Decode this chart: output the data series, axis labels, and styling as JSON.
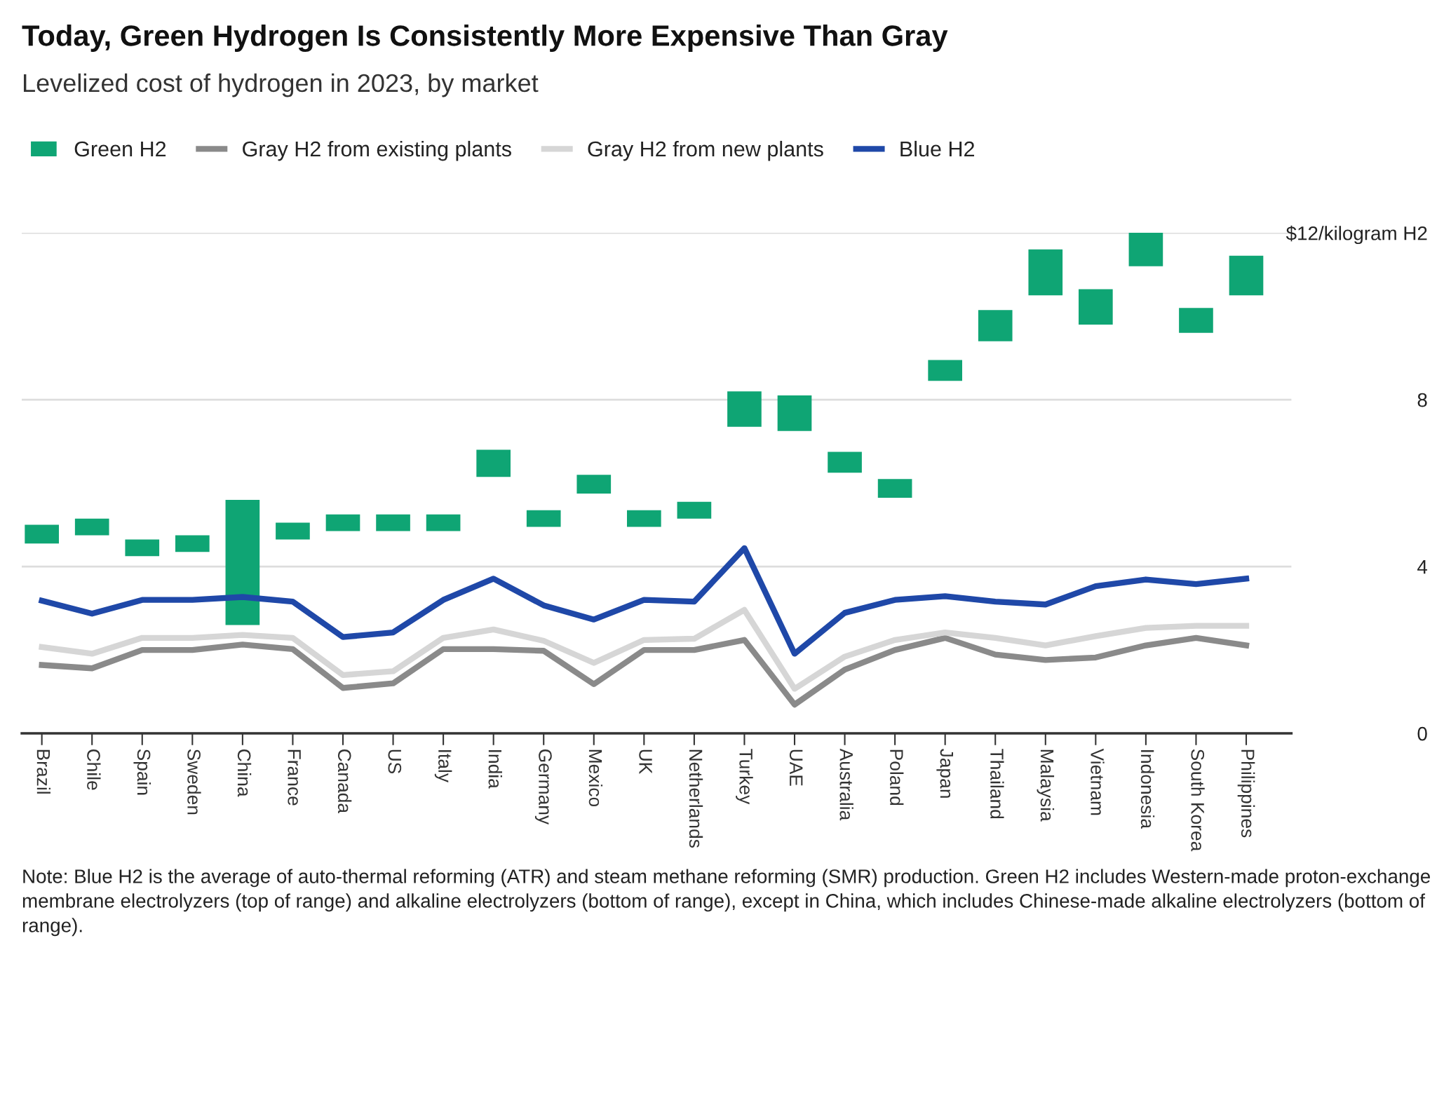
{
  "chart_data": {
    "type": "bar",
    "title": "Today, Green Hydrogen Is Consistently More Expensive Than Gray",
    "subtitle": "Levelized cost of hydrogen in 2023, by market",
    "categories": [
      "Brazil",
      "Chile",
      "Spain",
      "Sweden",
      "China",
      "France",
      "Canada",
      "US",
      "Italy",
      "India",
      "Germany",
      "Mexico",
      "UK",
      "Netherlands",
      "Turkey",
      "UAE",
      "Australia",
      "Poland",
      "Japan",
      "Thailand",
      "Malaysia",
      "Vietnam",
      "Indonesia",
      "South Korea",
      "Philippines"
    ],
    "series": [
      {
        "name": "Green H2",
        "type": "bar",
        "color": "#0fa574",
        "base": [
          4.55,
          4.75,
          4.25,
          4.35,
          2.6,
          4.65,
          4.85,
          4.85,
          4.85,
          6.15,
          4.95,
          5.75,
          4.95,
          5.15,
          7.35,
          7.25,
          6.25,
          5.65,
          8.45,
          9.4,
          10.5,
          9.8,
          11.2,
          9.6,
          10.5
        ],
        "values": [
          0.45,
          0.4,
          0.4,
          0.4,
          3.0,
          0.4,
          0.4,
          0.4,
          0.4,
          0.65,
          0.4,
          0.45,
          0.4,
          0.4,
          0.85,
          0.85,
          0.5,
          0.45,
          0.5,
          0.75,
          1.1,
          0.85,
          0.8,
          0.6,
          0.95
        ]
      },
      {
        "name": "Gray H2 from existing plants",
        "type": "line",
        "color": "#8a8a8a",
        "values": [
          1.64,
          1.56,
          2.0,
          2.0,
          2.13,
          2.02,
          1.09,
          1.2,
          2.02,
          2.02,
          1.98,
          1.18,
          2.0,
          2.0,
          2.24,
          0.69,
          1.53,
          2.0,
          2.29,
          1.89,
          1.76,
          1.82,
          2.11,
          2.29,
          2.11
        ]
      },
      {
        "name": "Gray H2 from new plants",
        "type": "line",
        "color": "#d6d6d6",
        "values": [
          2.07,
          1.91,
          2.29,
          2.29,
          2.36,
          2.29,
          1.4,
          1.49,
          2.29,
          2.49,
          2.22,
          1.69,
          2.24,
          2.27,
          2.96,
          1.07,
          1.84,
          2.24,
          2.42,
          2.29,
          2.11,
          2.33,
          2.53,
          2.58,
          2.58
        ]
      },
      {
        "name": "Blue H2",
        "type": "line",
        "color": "#1f48a8",
        "values": [
          3.18,
          2.87,
          3.2,
          3.2,
          3.27,
          3.16,
          2.31,
          2.42,
          3.2,
          3.71,
          3.07,
          2.73,
          3.2,
          3.16,
          4.44,
          1.91,
          2.89,
          3.2,
          3.29,
          3.16,
          3.09,
          3.53,
          3.69,
          3.58,
          3.71
        ]
      }
    ],
    "ylim": [
      0,
      12
    ],
    "yticks": [
      0,
      4,
      8,
      {
        "value": 12,
        "label": "$12/kilogram H2"
      }
    ],
    "grid": "y",
    "legend": "top left",
    "marker": "none",
    "line_style": "solid",
    "annotations": [
      "Note: Blue H2 is the average of auto-thermal reforming (ATR) and steam methane reforming (SMR) production. Green H2 includes Western-made proton-exchange membrane electrolyzers (top of range) and alkaline electrolyzers (bottom of range), except in China, which includes Chinese-made alkaline electrolyzers (bottom of range)."
    ]
  }
}
